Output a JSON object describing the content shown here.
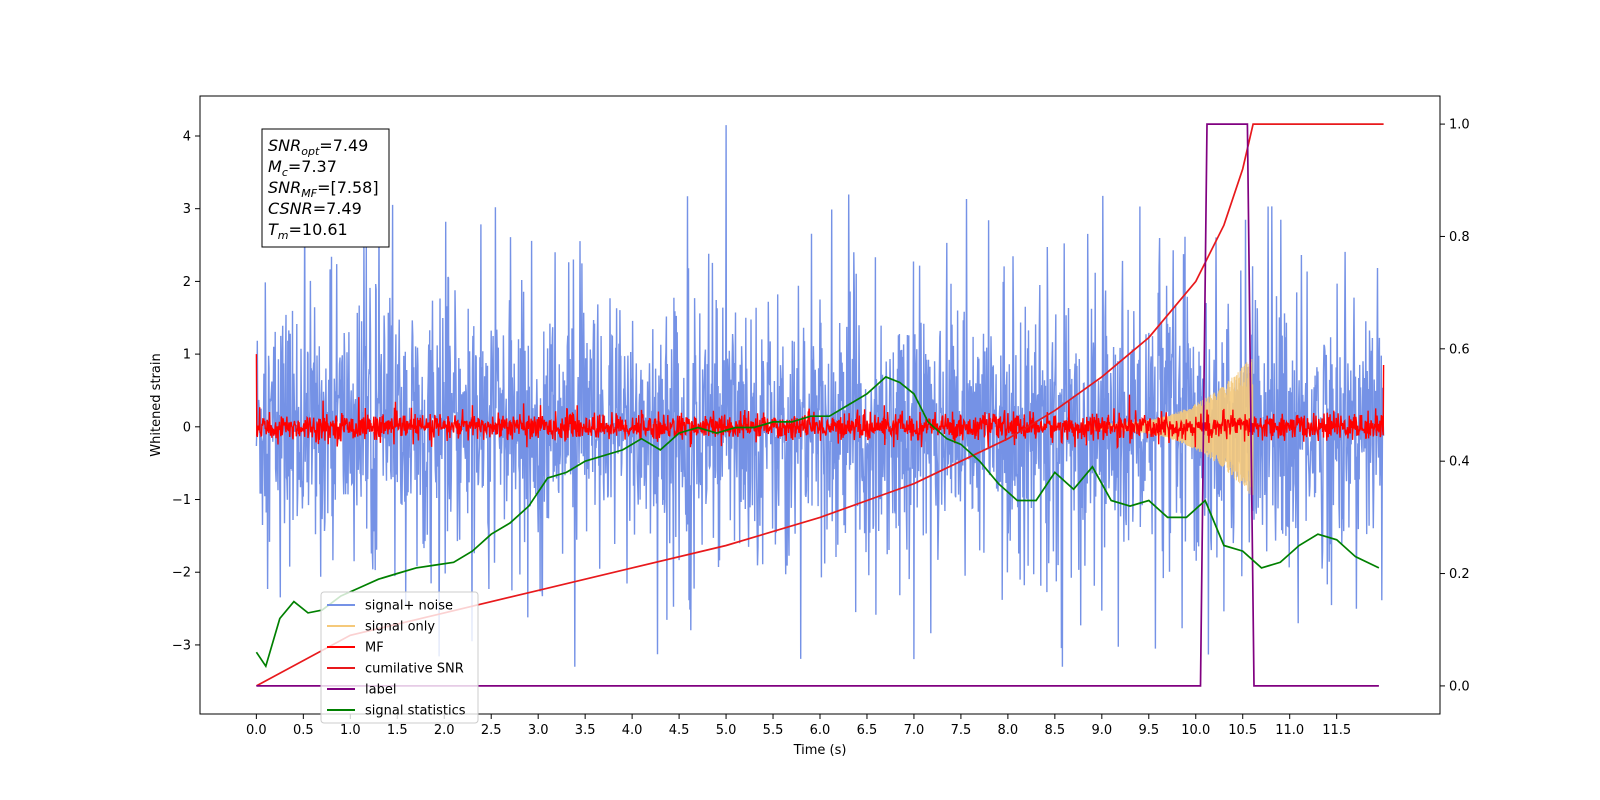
{
  "chart_data": {
    "type": "line",
    "xlabel": "Time (s)",
    "ylabel_left": "Whitened strain",
    "ylabel_right": "",
    "xlim": [
      -0.6,
      12.6
    ],
    "ylim_left": [
      -3.95,
      4.55
    ],
    "ylim_right": [
      -0.05,
      1.05
    ],
    "x_ticks": [
      "0.0",
      "0.5",
      "1.0",
      "1.5",
      "2.0",
      "2.5",
      "3.0",
      "3.5",
      "4.0",
      "4.5",
      "5.0",
      "5.5",
      "6.0",
      "6.5",
      "7.0",
      "7.5",
      "8.0",
      "8.5",
      "9.0",
      "9.5",
      "10.0",
      "10.5",
      "11.0",
      "11.5"
    ],
    "y_ticks_left": [
      4,
      3,
      2,
      1,
      0,
      -1,
      -2,
      -3
    ],
    "y_ticks_right": [
      "0.0",
      "0.2",
      "0.4",
      "0.6",
      "0.8",
      "1.0"
    ],
    "grid": false,
    "legend_placement": "lower-left",
    "annotation": {
      "lines": [
        {
          "sym": "SNR",
          "sub": "opt",
          "value": "=7.49"
        },
        {
          "sym": "M",
          "sub": "c",
          "value": "=7.37"
        },
        {
          "sym": "SNR",
          "sub": "MF",
          "value": "=[7.58]"
        },
        {
          "sym": "CSNR",
          "sub": "",
          "value": "=7.49"
        },
        {
          "sym": "T",
          "sub": "m",
          "value": "=10.61"
        }
      ]
    },
    "series": [
      {
        "name": "signal+ noise",
        "axis": "left",
        "color": "#7592e6",
        "x_range": [
          0.0,
          12.0
        ],
        "baseline_std": 0.85,
        "spike_max": 4.15,
        "spike_min": -3.6
      },
      {
        "name": "signal only",
        "axis": "left",
        "color": "#f5c97a",
        "x_range": [
          8.8,
          10.61
        ],
        "peak_amplitude": 0.95
      },
      {
        "name": "MF",
        "axis": "left",
        "color": "#ff0000",
        "x_range": [
          0.0,
          12.0
        ],
        "amplitude": 0.25,
        "start_value": 1.0,
        "end_value": 0.85
      },
      {
        "name": "cumilative SNR",
        "axis": "right",
        "color": "#e8191c",
        "x": [
          0.0,
          1.0,
          2.0,
          3.0,
          4.0,
          5.0,
          6.0,
          7.0,
          7.5,
          8.0,
          8.5,
          9.0,
          9.5,
          10.0,
          10.3,
          10.5,
          10.61,
          12.0
        ],
        "y": [
          0.0,
          0.09,
          0.13,
          0.17,
          0.21,
          0.25,
          0.3,
          0.36,
          0.4,
          0.44,
          0.49,
          0.55,
          0.62,
          0.72,
          0.82,
          0.92,
          1.0,
          1.0
        ]
      },
      {
        "name": "label",
        "axis": "right",
        "color": "#800080",
        "x": [
          0.0,
          10.05,
          10.12,
          10.55,
          10.62,
          11.95
        ],
        "y": [
          0.0,
          0.0,
          1.0,
          1.0,
          0.0,
          0.0
        ]
      },
      {
        "name": "signal statistics",
        "axis": "right",
        "color": "#008000",
        "x": [
          0.0,
          0.1,
          0.25,
          0.4,
          0.55,
          0.7,
          0.9,
          1.1,
          1.3,
          1.5,
          1.7,
          1.9,
          2.1,
          2.3,
          2.5,
          2.7,
          2.9,
          3.1,
          3.3,
          3.5,
          3.7,
          3.9,
          4.1,
          4.3,
          4.5,
          4.7,
          4.9,
          5.1,
          5.3,
          5.5,
          5.7,
          5.9,
          6.1,
          6.3,
          6.5,
          6.7,
          6.85,
          7.0,
          7.15,
          7.35,
          7.5,
          7.7,
          7.9,
          8.1,
          8.3,
          8.5,
          8.7,
          8.9,
          9.1,
          9.3,
          9.5,
          9.7,
          9.9,
          10.1,
          10.3,
          10.5,
          10.7,
          10.9,
          11.1,
          11.3,
          11.5,
          11.7,
          11.95
        ],
        "y": [
          0.06,
          0.035,
          0.12,
          0.15,
          0.13,
          0.135,
          0.16,
          0.175,
          0.19,
          0.2,
          0.21,
          0.215,
          0.22,
          0.24,
          0.27,
          0.29,
          0.32,
          0.37,
          0.38,
          0.4,
          0.41,
          0.42,
          0.44,
          0.42,
          0.45,
          0.46,
          0.45,
          0.46,
          0.46,
          0.47,
          0.47,
          0.48,
          0.48,
          0.5,
          0.52,
          0.55,
          0.54,
          0.52,
          0.47,
          0.44,
          0.43,
          0.4,
          0.36,
          0.33,
          0.33,
          0.38,
          0.35,
          0.39,
          0.33,
          0.32,
          0.33,
          0.3,
          0.3,
          0.33,
          0.25,
          0.24,
          0.21,
          0.22,
          0.25,
          0.27,
          0.26,
          0.23,
          0.21
        ]
      }
    ]
  }
}
